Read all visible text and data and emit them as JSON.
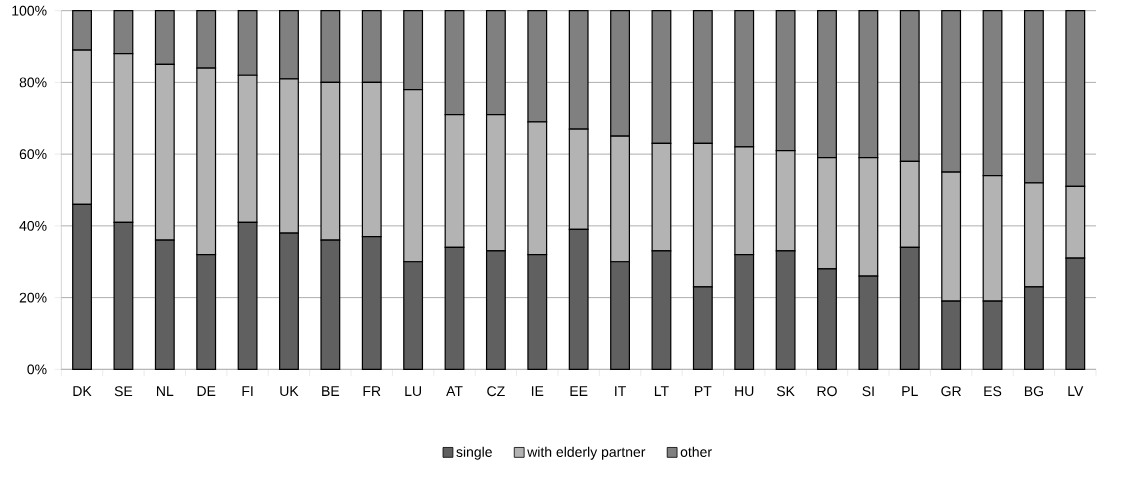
{
  "chart_data": {
    "type": "bar",
    "stacked": true,
    "categories": [
      "DK",
      "SE",
      "NL",
      "DE",
      "FI",
      "UK",
      "BE",
      "FR",
      "LU",
      "AT",
      "CZ",
      "IE",
      "EE",
      "IT",
      "LT",
      "PT",
      "HU",
      "SK",
      "RO",
      "SI",
      "PL",
      "GR",
      "ES",
      "BG",
      "LV"
    ],
    "series": [
      {
        "name": "single",
        "color": "#606060",
        "values": [
          46,
          41,
          36,
          32,
          41,
          38,
          36,
          37,
          30,
          34,
          33,
          32,
          39,
          30,
          33,
          23,
          32,
          33,
          28,
          26,
          34,
          19,
          19,
          23,
          31
        ]
      },
      {
        "name": "with elderly partner",
        "color": "#b3b3b3",
        "values": [
          43,
          47,
          49,
          52,
          41,
          43,
          44,
          43,
          48,
          37,
          38,
          37,
          28,
          35,
          30,
          40,
          30,
          28,
          31,
          33,
          24,
          36,
          35,
          29,
          20
        ]
      },
      {
        "name": "other",
        "color": "#808080",
        "values": [
          11,
          12,
          15,
          16,
          18,
          19,
          20,
          20,
          22,
          29,
          29,
          31,
          33,
          35,
          37,
          37,
          38,
          39,
          41,
          41,
          42,
          45,
          46,
          48,
          49
        ]
      }
    ],
    "ylim": [
      0,
      100
    ],
    "yticks": [
      {
        "value": 0,
        "label": "0%"
      },
      {
        "value": 20,
        "label": "20%"
      },
      {
        "value": 40,
        "label": "40%"
      },
      {
        "value": 60,
        "label": "60%"
      },
      {
        "value": 80,
        "label": "80%"
      },
      {
        "value": 100,
        "label": "100%"
      }
    ],
    "grid": "y",
    "legend": "bottom"
  }
}
